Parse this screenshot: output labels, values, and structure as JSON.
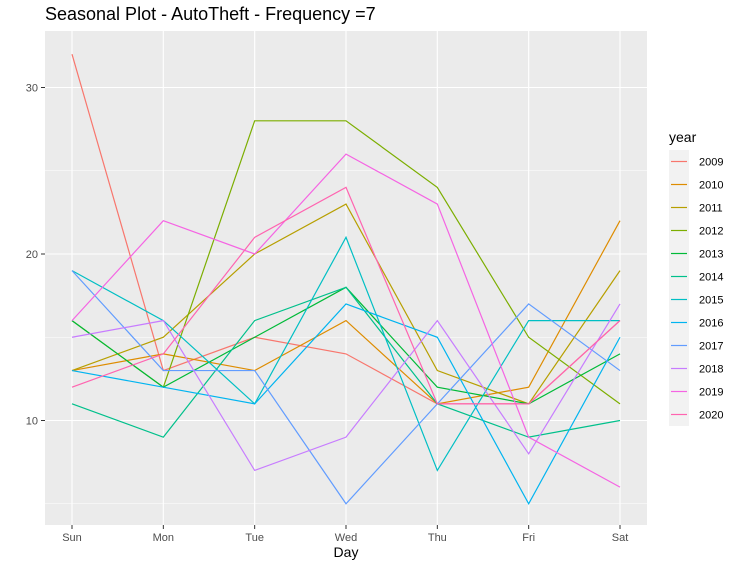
{
  "chart_data": {
    "type": "line",
    "title": "Seasonal Plot - AutoTheft - Frequency =7",
    "xlabel": "Day",
    "ylabel": "",
    "categories": [
      "Sun",
      "Mon",
      "Tue",
      "Wed",
      "Thu",
      "Fri",
      "Sat"
    ],
    "ylim": [
      4,
      33
    ],
    "yticks": [
      10,
      20,
      30
    ],
    "grid": true,
    "legend_title": "year",
    "legend_position": "right",
    "series": [
      {
        "name": "2009",
        "color": "#F8766D",
        "values": [
          32,
          13,
          15,
          14,
          11,
          11,
          16
        ]
      },
      {
        "name": "2010",
        "color": "#DE8C00",
        "values": [
          13,
          14,
          13,
          16,
          11,
          12,
          22
        ]
      },
      {
        "name": "2011",
        "color": "#B79F00",
        "values": [
          13,
          15,
          20,
          23,
          13,
          11,
          19
        ]
      },
      {
        "name": "2012",
        "color": "#7CAE00",
        "values": [
          16,
          12,
          28,
          28,
          24,
          15,
          11
        ]
      },
      {
        "name": "2013",
        "color": "#00BA38",
        "values": [
          16,
          12,
          15,
          18,
          12,
          11,
          14
        ]
      },
      {
        "name": "2014",
        "color": "#00C08B",
        "values": [
          11,
          9,
          16,
          18,
          11,
          9,
          10
        ]
      },
      {
        "name": "2015",
        "color": "#00BFC4",
        "values": [
          19,
          16,
          11,
          21,
          7,
          16,
          16
        ]
      },
      {
        "name": "2016",
        "color": "#00B4F0",
        "values": [
          13,
          12,
          11,
          17,
          15,
          5,
          15
        ]
      },
      {
        "name": "2017",
        "color": "#619CFF",
        "values": [
          19,
          13,
          13,
          5,
          11,
          17,
          13
        ]
      },
      {
        "name": "2018",
        "color": "#C77CFF",
        "values": [
          15,
          16,
          7,
          9,
          16,
          8,
          17
        ]
      },
      {
        "name": "2019",
        "color": "#F564E3",
        "values": [
          16,
          22,
          20,
          26,
          23,
          9,
          6
        ]
      },
      {
        "name": "2020",
        "color": "#FF64B0",
        "values": [
          12,
          14,
          21,
          24,
          11,
          11,
          16
        ]
      }
    ]
  }
}
